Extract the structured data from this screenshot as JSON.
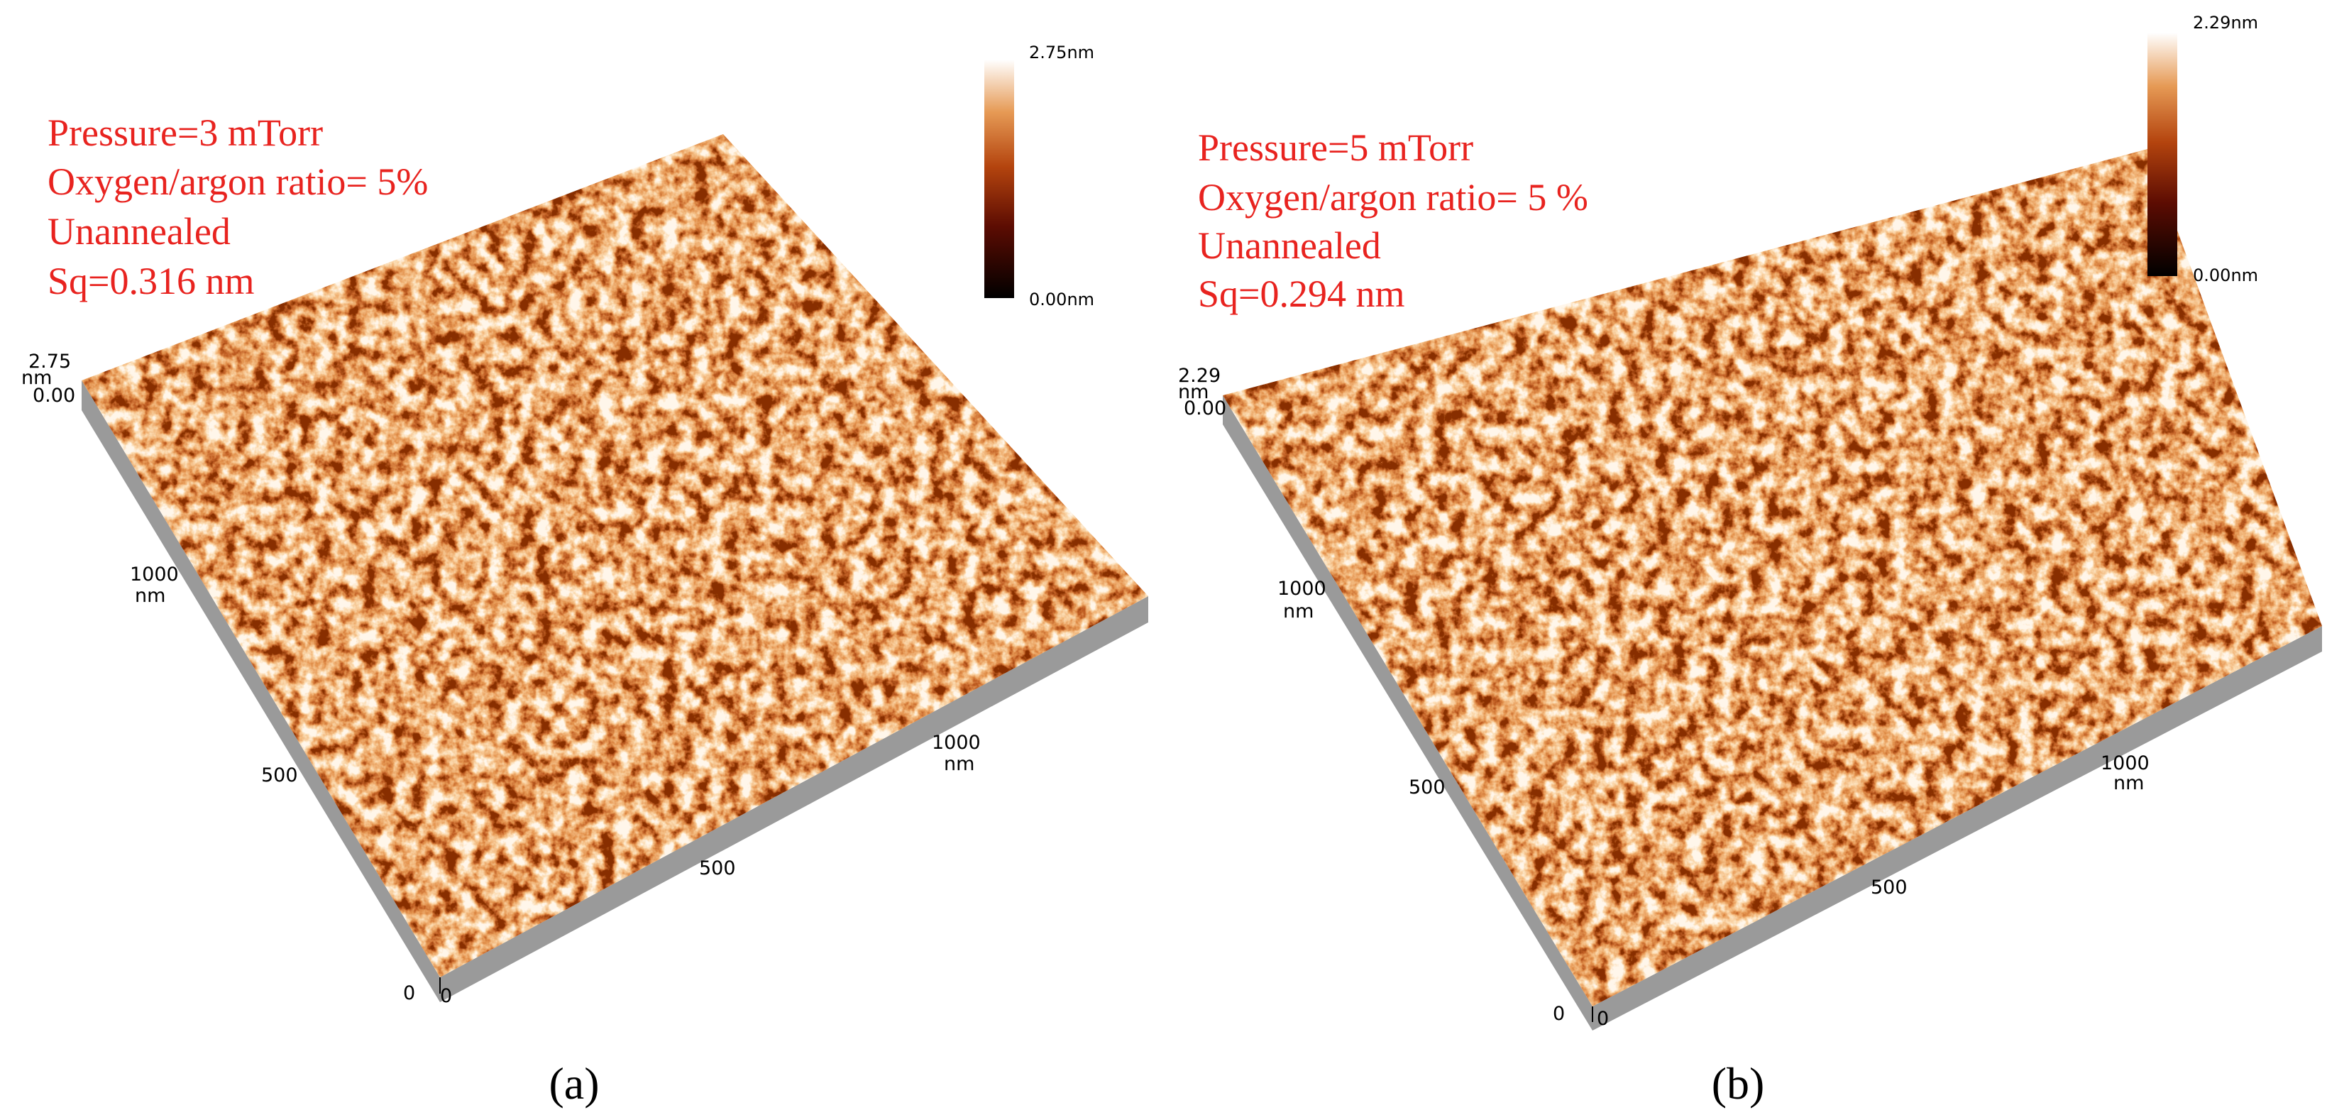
{
  "panels": [
    {
      "annotations": [
        "Pressure=3 mTorr",
        "Oxygen/argon ratio= 5%",
        "Unannealed",
        "Sq=0.316 nm"
      ],
      "colorbar": {
        "max": "2.75nm",
        "min": "0.00nm"
      },
      "axis_labels": {
        "z_max": "2.75",
        "z_unit": "nm",
        "z_min": "0.00",
        "y_1000": "1000",
        "y_1000_unit": "nm",
        "y_500": "500",
        "y_0": "0",
        "x_0": "0",
        "x_500": "500",
        "x_1000": "1000",
        "x_1000_unit": "nm"
      },
      "caption": "(a)"
    },
    {
      "annotations": [
        "Pressure=5 mTorr",
        "Oxygen/argon ratio= 5 %",
        "Unannealed",
        "Sq=0.294 nm"
      ],
      "colorbar": {
        "max": "2.29nm",
        "min": "0.00nm"
      },
      "axis_labels": {
        "z_max": "2.29",
        "z_unit": "nm",
        "z_min": "0.00",
        "y_1000": "1000",
        "y_1000_unit": "nm",
        "y_500": "500",
        "y_0": "0",
        "x_0": "0",
        "x_500": "500",
        "x_1000": "1000",
        "x_1000_unit": "nm"
      },
      "caption": "(b)"
    }
  ]
}
